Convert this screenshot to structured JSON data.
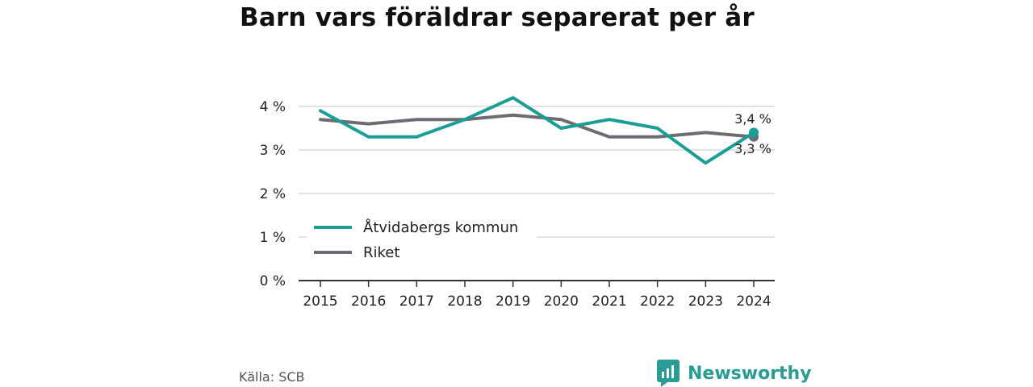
{
  "title": "Barn vars föräldrar separerat per år",
  "source": "Källa: SCB",
  "brand": {
    "name": "Newsworthy",
    "logo": "newsworthy-logo-icon"
  },
  "colors": {
    "kommun": "#1a9e95",
    "riket": "#6e6c73",
    "grid": "#dcdcdc",
    "axis": "#333333"
  },
  "chart_data": {
    "type": "line",
    "x": [
      "2015",
      "2016",
      "2017",
      "2018",
      "2019",
      "2020",
      "2021",
      "2022",
      "2023",
      "2024"
    ],
    "series": [
      {
        "name": "Åtvidabergs kommun",
        "values": [
          3.9,
          3.3,
          3.3,
          3.7,
          4.2,
          3.5,
          3.7,
          3.5,
          2.7,
          3.4
        ],
        "color": "#1a9e95"
      },
      {
        "name": "Riket",
        "values": [
          3.7,
          3.6,
          3.7,
          3.7,
          3.8,
          3.7,
          3.3,
          3.3,
          3.4,
          3.3
        ],
        "color": "#6e6c73"
      }
    ],
    "yticks": [
      "0 %",
      "1 %",
      "2 %",
      "3 %",
      "4 %"
    ],
    "ylim": [
      0,
      4.4
    ],
    "end_labels": [
      "3,4 %",
      "3,3 %"
    ],
    "grid": true,
    "legend": "bottom-left"
  }
}
